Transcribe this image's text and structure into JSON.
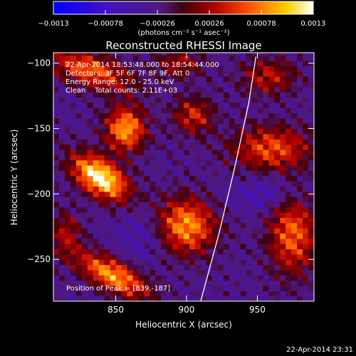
{
  "chart_data": {
    "type": "heatmap",
    "title": "Reconstructed RHESSI Image",
    "xlabel": "Heliocentric X (arcsec)",
    "ylabel": "Heliocentric Y (arcsec)",
    "xlim": [
      806,
      990
    ],
    "ylim": [
      -282,
      -92
    ],
    "x_ticks": [
      850,
      900,
      950
    ],
    "y_ticks": [
      -100,
      -150,
      -200,
      -250
    ],
    "colorbar": {
      "range": [
        -0.0013,
        0.0013
      ],
      "tick_labels": [
        "-0.0013",
        "-0.00078",
        "-0.00026",
        "0.00026",
        "0.00078",
        "0.0013"
      ],
      "units_label": "(photons cm⁻² s⁻¹ asec⁻²)",
      "scheme": "blue-purple-red-yellow-white"
    },
    "annotations": [
      "22-Apr-2014 18:53:48.000 to 18:54:44.000",
      "Detectors: 3F 5F 6F 7F 8F 9F, Att 0",
      "Energy Range: 12.0 - 25.0 keV",
      "Clean    Total counts: 2.11E+03"
    ],
    "peak_label": "Position of Peak = [839,-187]",
    "peak_position": [
      839,
      -187
    ],
    "limb_line": [
      [
        910,
        -282
      ],
      [
        923,
        -230
      ],
      [
        934,
        -180
      ],
      [
        944,
        -130
      ],
      [
        949,
        -95
      ]
    ],
    "sources": [
      {
        "x": 839,
        "y": -187,
        "amp": 1.0,
        "sx": 16,
        "sy": 9,
        "angle": -38
      },
      {
        "x": 857,
        "y": -150,
        "amp": 0.75,
        "sx": 10,
        "sy": 12,
        "angle": 0
      },
      {
        "x": 898,
        "y": -225,
        "amp": 0.85,
        "sx": 15,
        "sy": 15,
        "angle": 0
      },
      {
        "x": 832,
        "y": -105,
        "amp": 0.6,
        "sx": 22,
        "sy": 9,
        "angle": -20
      },
      {
        "x": 848,
        "y": -262,
        "amp": 0.75,
        "sx": 20,
        "sy": 8,
        "angle": -30
      },
      {
        "x": 960,
        "y": -165,
        "amp": 0.55,
        "sx": 20,
        "sy": 12,
        "angle": 0
      },
      {
        "x": 975,
        "y": -230,
        "amp": 0.6,
        "sx": 12,
        "sy": 22,
        "angle": 0
      },
      {
        "x": 905,
        "y": -140,
        "amp": 0.45,
        "sx": 10,
        "sy": 10,
        "angle": 0
      },
      {
        "x": 895,
        "y": -100,
        "amp": 0.35,
        "sx": 12,
        "sy": 8,
        "angle": 0
      },
      {
        "x": 815,
        "y": -230,
        "amp": 0.35,
        "sx": 8,
        "sy": 12,
        "angle": 0
      },
      {
        "x": 958,
        "y": -110,
        "amp": 0.4,
        "sx": 14,
        "sy": 10,
        "angle": 0
      },
      {
        "x": 880,
        "y": -230,
        "amp": -0.25,
        "sx": 18,
        "sy": 14,
        "angle": 0
      },
      {
        "x": 960,
        "y": -200,
        "amp": -0.2,
        "sx": 20,
        "sy": 10,
        "angle": 0
      }
    ]
  },
  "footer_timestamp": "22-Apr-2014 23:31"
}
